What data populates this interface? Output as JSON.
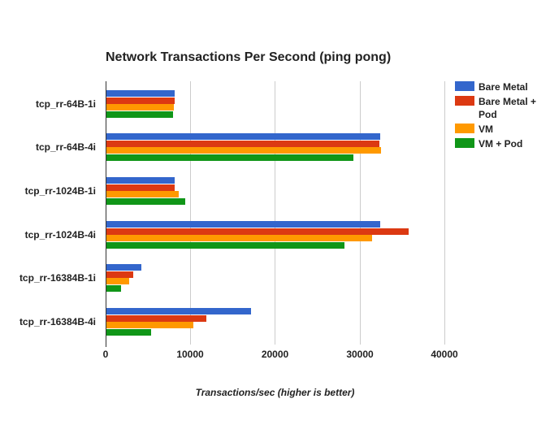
{
  "chart_data": {
    "type": "bar",
    "orientation": "horizontal",
    "title": "Network Transactions Per Second (ping pong)",
    "xlabel": "Transactions/sec (higher is better)",
    "ylabel": "",
    "xlim": [
      0,
      42000
    ],
    "x_ticks": [
      "0",
      "10000",
      "20000",
      "30000",
      "40000"
    ],
    "grid": true,
    "legend_position": "right",
    "categories": [
      "tcp_rr-64B-1i",
      "tcp_rr-64B-4i",
      "tcp_rr-1024B-1i",
      "tcp_rr-1024B-4i",
      "tcp_rr-16384B-1i",
      "tcp_rr-16384B-4i"
    ],
    "series": [
      {
        "name": "Bare Metal",
        "color": "#3366cc",
        "values": [
          8050,
          32300,
          8050,
          32300,
          4100,
          17050
        ]
      },
      {
        "name": "Bare Metal + Pod",
        "color": "#dc3912",
        "values": [
          8050,
          32200,
          8050,
          35650,
          3150,
          11800
        ]
      },
      {
        "name": "VM",
        "color": "#ff9900",
        "values": [
          7950,
          32400,
          8550,
          31350,
          2700,
          10250
        ]
      },
      {
        "name": "VM + Pod",
        "color": "#109618",
        "values": [
          7850,
          29150,
          9300,
          28100,
          1700,
          5250
        ]
      }
    ]
  },
  "legend": {
    "items": [
      {
        "label": "Bare Metal",
        "color": "#3366cc"
      },
      {
        "label": "Bare Metal + Pod",
        "color": "#dc3912"
      },
      {
        "label": "VM",
        "color": "#ff9900"
      },
      {
        "label": "VM + Pod",
        "color": "#109618"
      }
    ]
  }
}
